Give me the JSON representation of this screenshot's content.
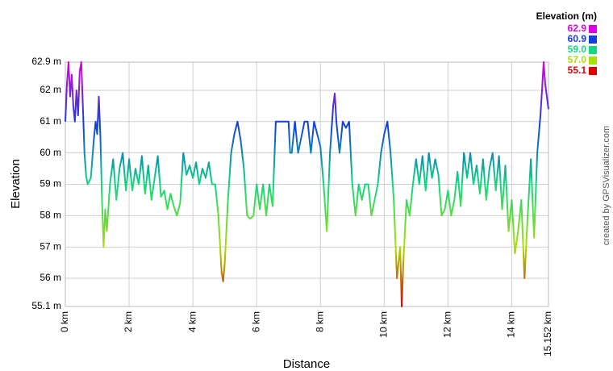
{
  "chart_data": {
    "type": "line",
    "x_label": "Distance",
    "y_label": "Elevation",
    "credit": "created by GPSVisualizer.com",
    "grid": true,
    "xlim": [
      0,
      15.152
    ],
    "ylim": [
      55.1,
      62.9
    ],
    "xticks": [
      {
        "value": 0,
        "label": "0 km"
      },
      {
        "value": 2,
        "label": "2 km"
      },
      {
        "value": 4,
        "label": "4 km"
      },
      {
        "value": 6,
        "label": "6 km"
      },
      {
        "value": 8,
        "label": "8 km"
      },
      {
        "value": 10,
        "label": "10 km"
      },
      {
        "value": 12,
        "label": "12 km"
      },
      {
        "value": 14,
        "label": "14 km"
      },
      {
        "value": 15.152,
        "label": "15.152 km"
      }
    ],
    "yticks": [
      {
        "value": 55.1,
        "label": "55.1 m"
      },
      {
        "value": 56,
        "label": "56 m"
      },
      {
        "value": 57,
        "label": "57 m"
      },
      {
        "value": 58,
        "label": "58 m"
      },
      {
        "value": 59,
        "label": "59 m"
      },
      {
        "value": 60,
        "label": "60 m"
      },
      {
        "value": 61,
        "label": "61 m"
      },
      {
        "value": 62,
        "label": "62 m"
      },
      {
        "value": 62.9,
        "label": "62.9 m"
      }
    ],
    "colorbar": {
      "title": "Elevation (m)",
      "stops": [
        {
          "value": 62.9,
          "color": "#e000e0"
        },
        {
          "value": 60.9,
          "color": "#1040e0"
        },
        {
          "value": 59,
          "label": "59.0",
          "color": "#10d880"
        },
        {
          "value": 57,
          "label": "57.0",
          "color": "#a8e000"
        },
        {
          "value": 55.1,
          "color": "#e00000"
        }
      ]
    },
    "x": [
      0,
      0.05,
      0.1,
      0.15,
      0.2,
      0.25,
      0.3,
      0.35,
      0.4,
      0.45,
      0.5,
      0.55,
      0.6,
      0.65,
      0.7,
      0.8,
      0.9,
      0.95,
      1,
      1.05,
      1.1,
      1.15,
      1.2,
      1.25,
      1.3,
      1.4,
      1.5,
      1.6,
      1.7,
      1.8,
      1.9,
      2,
      2.1,
      2.2,
      2.3,
      2.4,
      2.5,
      2.6,
      2.7,
      2.8,
      2.9,
      3,
      3.1,
      3.2,
      3.3,
      3.4,
      3.5,
      3.6,
      3.7,
      3.8,
      3.9,
      4,
      4.1,
      4.2,
      4.3,
      4.4,
      4.5,
      4.6,
      4.7,
      4.8,
      4.9,
      4.95,
      5,
      5.1,
      5.2,
      5.3,
      5.4,
      5.5,
      5.6,
      5.7,
      5.8,
      5.9,
      6,
      6.1,
      6.2,
      6.3,
      6.4,
      6.5,
      6.6,
      6.8,
      7,
      7.05,
      7.1,
      7.2,
      7.3,
      7.5,
      7.6,
      7.7,
      7.8,
      8,
      8.1,
      8.2,
      8.3,
      8.4,
      8.45,
      8.5,
      8.6,
      8.7,
      8.8,
      8.9,
      9,
      9.1,
      9.2,
      9.3,
      9.4,
      9.5,
      9.6,
      9.7,
      9.8,
      9.9,
      10,
      10.1,
      10.2,
      10.3,
      10.4,
      10.5,
      10.55,
      10.6,
      10.7,
      10.8,
      10.9,
      11,
      11.1,
      11.2,
      11.3,
      11.4,
      11.5,
      11.6,
      11.7,
      11.8,
      11.9,
      12,
      12.1,
      12.2,
      12.3,
      12.4,
      12.5,
      12.6,
      12.7,
      12.8,
      12.9,
      13,
      13.1,
      13.2,
      13.3,
      13.4,
      13.5,
      13.6,
      13.7,
      13.8,
      13.9,
      14,
      14.1,
      14.2,
      14.3,
      14.4,
      14.5,
      14.6,
      14.7,
      14.8,
      14.9,
      14.95,
      15,
      15.05,
      15.152
    ],
    "values": [
      61,
      62.2,
      62.9,
      61.8,
      62.5,
      61.5,
      61,
      62,
      61.2,
      62.6,
      62.9,
      61.5,
      60,
      59.3,
      59,
      59.2,
      60.5,
      61,
      60.6,
      61.8,
      60.5,
      58.5,
      57,
      58.2,
      57.5,
      59,
      59.8,
      58.5,
      59.5,
      60,
      58.8,
      59.8,
      58.8,
      59.5,
      59,
      59.9,
      58.7,
      59.6,
      58.5,
      59.2,
      59.9,
      58.6,
      58.8,
      58.2,
      58.7,
      58.3,
      58,
      58.4,
      60,
      59.3,
      59.6,
      59.2,
      59.7,
      59,
      59.5,
      59.2,
      59.7,
      59,
      59,
      58,
      56.2,
      55.9,
      56.5,
      58.5,
      60,
      60.6,
      61,
      60.4,
      59.5,
      58,
      57.9,
      58,
      59,
      58.2,
      59,
      58,
      59,
      58.3,
      61,
      61,
      61,
      60,
      60,
      61,
      60,
      61,
      61,
      60,
      61,
      60.2,
      59,
      57.5,
      60,
      61.5,
      61.9,
      61,
      60,
      61,
      60.8,
      61,
      59,
      58,
      59,
      58.5,
      59,
      59,
      58,
      58.5,
      59,
      60,
      60.6,
      61,
      60,
      58.5,
      56,
      57,
      55.1,
      56.5,
      58.5,
      58,
      59,
      59.8,
      59,
      59.9,
      58.8,
      60,
      59.2,
      59.8,
      59.3,
      58,
      58.2,
      58.8,
      58,
      58.5,
      59.4,
      58.3,
      60,
      59.2,
      60,
      59,
      59.6,
      58.7,
      59.8,
      58.5,
      59.5,
      60,
      58.8,
      59.9,
      58.2,
      59.6,
      57.5,
      58.5,
      56.8,
      57.5,
      58.5,
      56,
      58,
      59.8,
      57.3,
      60,
      61.2,
      62,
      62.9,
      62.2,
      61.4
    ]
  }
}
